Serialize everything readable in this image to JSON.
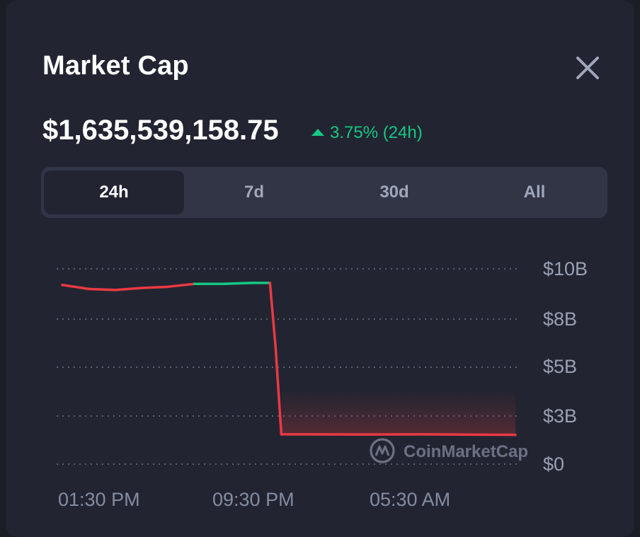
{
  "header": {
    "title": "Market Cap",
    "close_icon": "close-icon"
  },
  "price": {
    "value": "$1,635,539,158.75",
    "change": "3.75% (24h)",
    "change_direction": "up",
    "change_color": "#16c784"
  },
  "tabs": [
    {
      "label": "24h",
      "active": true
    },
    {
      "label": "7d",
      "active": false
    },
    {
      "label": "30d",
      "active": false
    },
    {
      "label": "All",
      "active": false
    }
  ],
  "watermark": {
    "text": "CoinMarketCap",
    "icon": "coinmarketcap-logo-icon"
  },
  "chart_data": {
    "type": "line",
    "title": "",
    "xlabel": "",
    "ylabel": "",
    "x_tick_labels": [
      "01:30 PM",
      "09:30 PM",
      "05:30 AM"
    ],
    "y_tick_labels": [
      "$10B",
      "$8B",
      "$5B",
      "$3B",
      "$0"
    ],
    "grid": true,
    "series": [
      {
        "x": [
          0,
          1.4,
          2.8,
          4.2,
          5.5,
          7.0,
          8.5,
          10.0,
          11.0,
          11.3,
          11.6,
          13.0,
          16.0,
          19.0,
          22.0,
          24.0
        ],
        "values": [
          9.2,
          9.0,
          8.95,
          9.05,
          9.1,
          9.25,
          9.25,
          9.3,
          9.3,
          6.0,
          1.55,
          1.55,
          1.54,
          1.55,
          1.53,
          1.52
        ]
      }
    ],
    "up_color": "#16c784",
    "down_color": "#ea3943"
  }
}
